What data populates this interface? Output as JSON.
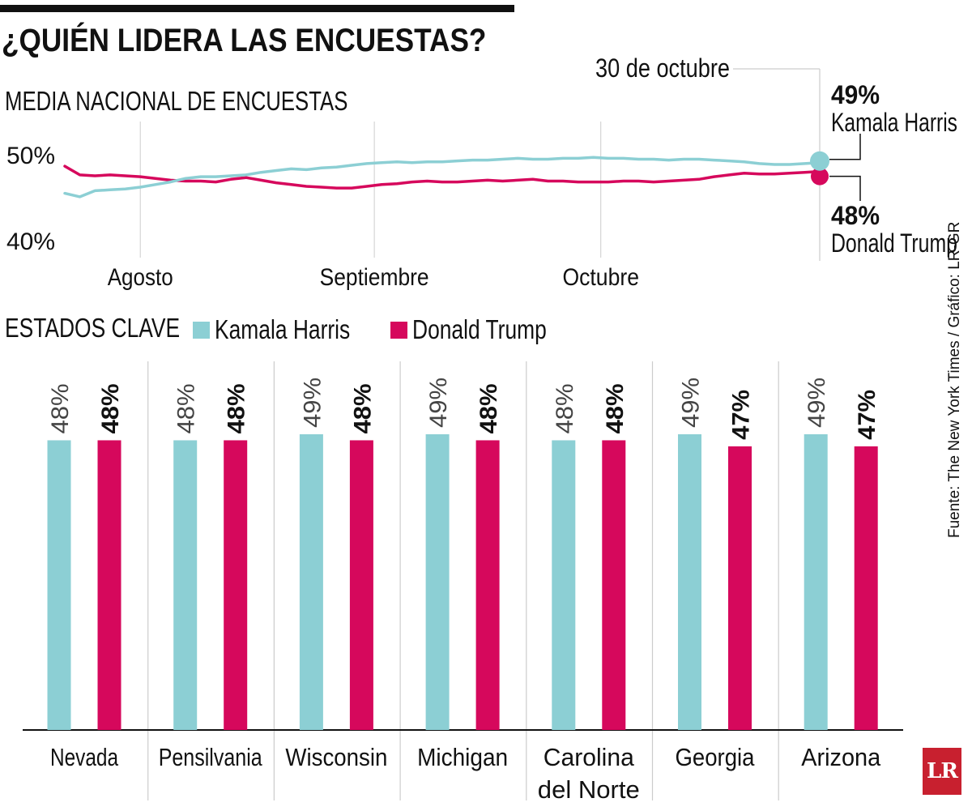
{
  "header": {
    "title": "¿QUIÉN LIDERA LAS ENCUESTAS?",
    "subtitle": "MEDIA NACIONAL DE ENCUESTAS",
    "source": "Fuente: The New York Times / Gráfico: LR-GR",
    "logo_text": "LR"
  },
  "colors": {
    "harris": "#8ccfd4",
    "trump": "#d6085c",
    "grid": "#cccccc",
    "text": "#111111"
  },
  "chart_data": [
    {
      "type": "line",
      "title": "MEDIA NACIONAL DE ENCUESTAS",
      "ylabels": [
        "50%",
        "40%"
      ],
      "ylim": [
        40,
        50
      ],
      "xlim": [
        0,
        100
      ],
      "month_ticks": [
        {
          "label": "Agosto",
          "x": 10
        },
        {
          "label": "Septiembre",
          "x": 41
        },
        {
          "label": "Octubre",
          "x": 71
        }
      ],
      "series": [
        {
          "name": "Kamala Harris",
          "x": [
            0,
            2,
            4,
            6,
            8,
            10,
            12,
            14,
            16,
            18,
            20,
            22,
            24,
            26,
            28,
            30,
            32,
            34,
            36,
            38,
            40,
            42,
            44,
            46,
            48,
            50,
            52,
            54,
            56,
            58,
            60,
            62,
            64,
            66,
            68,
            70,
            72,
            74,
            76,
            78,
            80,
            82,
            84,
            86,
            88,
            90,
            92,
            94,
            96,
            98,
            100
          ],
          "values": [
            45.5,
            45.1,
            45.8,
            45.9,
            46.0,
            46.2,
            46.5,
            46.8,
            47.2,
            47.4,
            47.4,
            47.5,
            47.6,
            47.9,
            48.1,
            48.3,
            48.2,
            48.4,
            48.5,
            48.7,
            48.9,
            49.0,
            49.1,
            49.0,
            49.1,
            49.1,
            49.2,
            49.3,
            49.3,
            49.4,
            49.5,
            49.4,
            49.4,
            49.5,
            49.5,
            49.6,
            49.5,
            49.5,
            49.4,
            49.4,
            49.3,
            49.4,
            49.4,
            49.3,
            49.2,
            49.1,
            48.9,
            48.8,
            48.8,
            48.9,
            49.0
          ]
        },
        {
          "name": "Donald Trump",
          "x": [
            0,
            2,
            4,
            6,
            8,
            10,
            12,
            14,
            16,
            18,
            20,
            22,
            24,
            26,
            28,
            30,
            32,
            34,
            36,
            38,
            40,
            42,
            44,
            46,
            48,
            50,
            52,
            54,
            56,
            58,
            60,
            62,
            64,
            66,
            68,
            70,
            72,
            74,
            76,
            78,
            80,
            82,
            84,
            86,
            88,
            90,
            92,
            94,
            96,
            98,
            100
          ],
          "values": [
            48.6,
            47.6,
            47.5,
            47.6,
            47.5,
            47.4,
            47.2,
            47.0,
            46.9,
            46.9,
            46.8,
            47.1,
            47.3,
            47.0,
            46.7,
            46.5,
            46.3,
            46.2,
            46.1,
            46.1,
            46.3,
            46.5,
            46.6,
            46.8,
            46.9,
            46.8,
            46.8,
            46.9,
            47.0,
            46.9,
            47.0,
            47.1,
            46.9,
            46.9,
            46.8,
            46.8,
            46.8,
            46.9,
            46.9,
            46.8,
            46.9,
            47.0,
            47.1,
            47.4,
            47.6,
            47.8,
            47.7,
            47.7,
            47.8,
            47.9,
            48.0
          ]
        }
      ],
      "end_annotation": {
        "date": "30 de octubre",
        "harris_value": "49%",
        "harris_name": "Kamala Harris",
        "trump_value": "48%",
        "trump_name": "Donald Trump"
      }
    },
    {
      "type": "bar",
      "title": "ESTADOS CLAVE",
      "categories": [
        "Nevada",
        "Pensilvania",
        "Wisconsin",
        "Michigan",
        "Carolina del Norte",
        "Georgia",
        "Arizona"
      ],
      "category_lines": [
        [
          "Nevada"
        ],
        [
          "Pensilvania"
        ],
        [
          "Wisconsin"
        ],
        [
          "Michigan"
        ],
        [
          "Carolina",
          "del Norte"
        ],
        [
          "Georgia"
        ],
        [
          "Arizona"
        ]
      ],
      "ylim": [
        0,
        49
      ],
      "series": [
        {
          "name": "Kamala Harris",
          "values": [
            48,
            48,
            49,
            49,
            48,
            49,
            49
          ],
          "labels": [
            "48%",
            "48%",
            "49%",
            "49%",
            "48%",
            "49%",
            "49%"
          ]
        },
        {
          "name": "Donald Trump",
          "values": [
            48,
            48,
            48,
            48,
            48,
            47,
            47
          ],
          "labels": [
            "48%",
            "48%",
            "48%",
            "48%",
            "48%",
            "47%",
            "47%"
          ]
        }
      ],
      "legend": [
        "Kamala Harris",
        "Donald Trump"
      ]
    }
  ]
}
